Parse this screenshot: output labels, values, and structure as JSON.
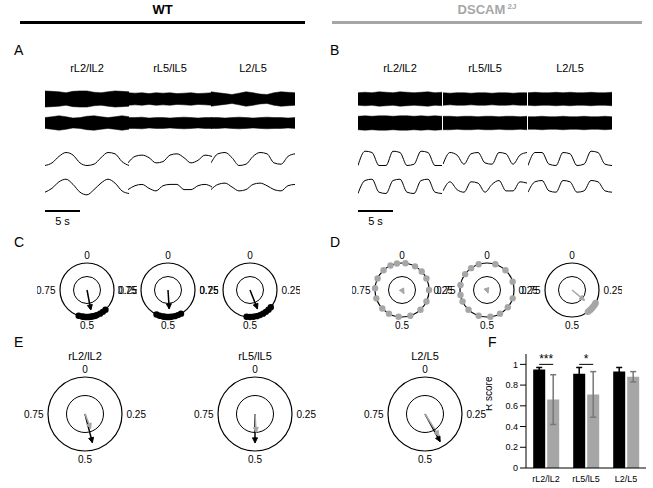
{
  "groups": [
    {
      "name": "WT",
      "color": "#000000"
    },
    {
      "name": "DSCAM",
      "superscript": "2J",
      "color": "#a6a6a6"
    }
  ],
  "chart_data": [
    {
      "panel": "A",
      "type": "line",
      "color": "#000000",
      "tick_labels": false,
      "x": [
        0,
        1,
        2,
        3,
        4,
        5,
        6,
        7,
        8,
        9,
        10,
        11,
        12
      ],
      "xlim": [
        0,
        12
      ],
      "ylim": [
        -1,
        1
      ],
      "scale_bar": {
        "value": 5,
        "label": "5 s"
      },
      "columns": [
        {
          "title": "rL2/lL2",
          "traces": [
            {
              "envelope": [
                0.9,
                0.85,
                0.8,
                0.7,
                0.85,
                0.9,
                0.9,
                0.75,
                0.7,
                0.8,
                0.9,
                0.85,
                0.8
              ]
            },
            {
              "envelope": [
                0.6,
                0.7,
                0.8,
                0.7,
                0.55,
                0.6,
                0.75,
                0.8,
                0.7,
                0.6,
                0.7,
                0.8,
                0.7
              ]
            },
            {
              "values": [
                -0.5,
                -0.3,
                0.2,
                0.5,
                0.3,
                -0.3,
                -0.5,
                -0.4,
                0.1,
                0.5,
                0.4,
                -0.2,
                -0.5
              ]
            },
            {
              "values": [
                -0.4,
                -0.1,
                0.4,
                0.6,
                0.2,
                -0.4,
                -0.6,
                -0.2,
                0.3,
                0.6,
                0.3,
                -0.3,
                -0.5
              ]
            }
          ]
        },
        {
          "title": "rL5/lL5",
          "traces": [
            {
              "envelope": [
                0.7,
                0.65,
                0.7,
                0.6,
                0.7,
                0.65,
                0.7,
                0.6,
                0.65,
                0.7,
                0.6,
                0.65,
                0.7
              ]
            },
            {
              "envelope": [
                0.6,
                0.6,
                0.65,
                0.55,
                0.6,
                0.6,
                0.55,
                0.6,
                0.65,
                0.6,
                0.55,
                0.6,
                0.6
              ]
            },
            {
              "values": [
                -0.3,
                0.2,
                0.3,
                0.1,
                -0.3,
                -0.2,
                0.3,
                0.4,
                0.1,
                -0.3,
                -0.1,
                0.3,
                0.2
              ]
            },
            {
              "values": [
                -0.2,
                0.1,
                0.2,
                -0.1,
                -0.3,
                0.1,
                0.2,
                0.2,
                -0.2,
                -0.2,
                0.1,
                0.2,
                0.0
              ]
            }
          ]
        },
        {
          "title": "L2/L5",
          "traces": [
            {
              "envelope": [
                0.8,
                0.7,
                0.6,
                0.5,
                0.65,
                0.8,
                0.7,
                0.55,
                0.5,
                0.7,
                0.8,
                0.75,
                0.7
              ]
            },
            {
              "envelope": [
                0.6,
                0.6,
                0.55,
                0.6,
                0.65,
                0.6,
                0.55,
                0.6,
                0.65,
                0.6,
                0.6,
                0.55,
                0.6
              ]
            },
            {
              "values": [
                -0.3,
                0.4,
                0.5,
                0.1,
                -0.5,
                -0.4,
                0.2,
                0.5,
                0.4,
                -0.3,
                -0.4,
                0.2,
                0.4
              ]
            },
            {
              "values": [
                -0.2,
                0.2,
                0.3,
                0.0,
                -0.3,
                -0.2,
                0.2,
                0.3,
                0.1,
                -0.2,
                -0.3,
                0.1,
                0.2
              ]
            }
          ]
        }
      ]
    },
    {
      "panel": "B",
      "type": "line",
      "color": "#000000",
      "tick_labels": false,
      "x": [
        0,
        1,
        2,
        3,
        4,
        5,
        6,
        7,
        8,
        9,
        10,
        11,
        12
      ],
      "xlim": [
        0,
        12
      ],
      "ylim": [
        -1,
        1
      ],
      "scale_bar": {
        "value": 5,
        "label": "5 s"
      },
      "columns": [
        {
          "title": "rL2/lL2",
          "traces": [
            {
              "envelope": [
                0.7,
                0.75,
                0.7,
                0.8,
                0.75,
                0.7,
                0.8,
                0.75,
                0.7,
                0.75,
                0.8,
                0.7,
                0.75
              ]
            },
            {
              "envelope": [
                0.75,
                0.8,
                0.75,
                0.8,
                0.8,
                0.75,
                0.8,
                0.8,
                0.75,
                0.8,
                0.75,
                0.8,
                0.75
              ]
            },
            {
              "values": [
                -0.5,
                0.6,
                0.5,
                -0.5,
                -0.5,
                0.6,
                0.5,
                -0.5,
                -0.4,
                0.6,
                0.5,
                -0.5,
                -0.5
              ]
            },
            {
              "values": [
                -0.5,
                0.5,
                0.6,
                -0.4,
                -0.5,
                0.5,
                0.6,
                -0.4,
                -0.5,
                0.5,
                0.6,
                -0.4,
                -0.5
              ]
            }
          ]
        },
        {
          "title": "rL5/lL5",
          "traces": [
            {
              "envelope": [
                0.7,
                0.65,
                0.7,
                0.7,
                0.65,
                0.7,
                0.7,
                0.65,
                0.7,
                0.7,
                0.65,
                0.7,
                0.7
              ]
            },
            {
              "envelope": [
                0.75,
                0.75,
                0.7,
                0.75,
                0.75,
                0.7,
                0.75,
                0.75,
                0.7,
                0.75,
                0.75,
                0.7,
                0.75
              ]
            },
            {
              "values": [
                -0.4,
                0.5,
                0.3,
                -0.4,
                0.4,
                0.5,
                -0.3,
                -0.4,
                0.5,
                0.4,
                -0.4,
                0.3,
                0.5
              ]
            },
            {
              "values": [
                -0.3,
                0.4,
                -0.2,
                -0.4,
                0.4,
                0.3,
                -0.4,
                0.2,
                0.5,
                -0.3,
                -0.3,
                0.4,
                0.3
              ]
            }
          ]
        },
        {
          "title": "L2/L5",
          "traces": [
            {
              "envelope": [
                0.7,
                0.75,
                0.7,
                0.7,
                0.75,
                0.7,
                0.75,
                0.7,
                0.7,
                0.75,
                0.7,
                0.7,
                0.75
              ]
            },
            {
              "envelope": [
                0.7,
                0.7,
                0.75,
                0.7,
                0.7,
                0.75,
                0.7,
                0.7,
                0.75,
                0.7,
                0.7,
                0.75,
                0.7
              ]
            },
            {
              "values": [
                -0.5,
                0.5,
                0.5,
                -0.4,
                -0.5,
                0.5,
                0.4,
                -0.5,
                -0.4,
                0.6,
                0.5,
                -0.4,
                -0.5
              ]
            },
            {
              "values": [
                -0.4,
                0.4,
                0.5,
                -0.3,
                -0.4,
                0.5,
                0.4,
                -0.4,
                -0.3,
                0.5,
                0.4,
                -0.3,
                -0.4
              ]
            }
          ]
        }
      ]
    },
    {
      "panel": "C",
      "type": "circular",
      "color": "#000000",
      "inner_ring": 0.5,
      "phase_ticks": [
        0,
        0.25,
        0.5,
        0.75
      ],
      "columns": [
        {
          "phases": [
            0.38,
            0.4,
            0.42,
            0.44,
            0.45,
            0.46,
            0.47,
            0.48,
            0.49,
            0.5,
            0.51,
            0.52,
            0.53,
            0.55
          ],
          "mean_phase": 0.47,
          "r": 0.75
        },
        {
          "phases": [
            0.42,
            0.44,
            0.46,
            0.48,
            0.49,
            0.5,
            0.51,
            0.52,
            0.53,
            0.55,
            0.57
          ],
          "mean_phase": 0.49,
          "r": 0.7
        },
        {
          "phases": [
            0.36,
            0.38,
            0.4,
            0.42,
            0.44,
            0.46,
            0.48,
            0.5,
            0.52
          ],
          "mean_phase": 0.44,
          "r": 0.75
        }
      ]
    },
    {
      "panel": "D",
      "type": "circular",
      "color": "#a6a6a6",
      "inner_ring": 0.5,
      "phase_ticks": [
        0,
        0.25,
        0.5,
        0.75
      ],
      "columns": [
        {
          "phases": [
            0.02,
            0.08,
            0.13,
            0.18,
            0.25,
            0.32,
            0.38,
            0.45,
            0.52,
            0.58,
            0.63,
            0.7,
            0.76,
            0.82,
            0.88,
            0.93,
            0.97
          ],
          "mean_phase": 0.42,
          "r": 0.15
        },
        {
          "phases": [
            0.05,
            0.12,
            0.2,
            0.3,
            0.36,
            0.42,
            0.48,
            0.55,
            0.62,
            0.68,
            0.72,
            0.78,
            0.85,
            0.9,
            0.95
          ],
          "mean_phase": 0.45,
          "r": 0.12
        },
        {
          "phases": [
            0.33,
            0.34,
            0.35,
            0.36,
            0.37,
            0.38,
            0.39,
            0.4
          ],
          "mean_phase": 0.36,
          "r": 0.6
        }
      ]
    },
    {
      "panel": "E",
      "type": "circular",
      "inner_ring": 0.5,
      "phase_ticks": [
        0,
        0.25,
        0.5,
        0.75
      ],
      "columns": [
        {
          "title": "rL2/lL2",
          "arrows": [
            {
              "color": "#000000",
              "mean_phase": 0.46,
              "r": 0.8
            },
            {
              "color": "#a6a6a6",
              "mean_phase": 0.44,
              "r": 0.42
            }
          ]
        },
        {
          "title": "rL5/lL5",
          "arrows": [
            {
              "color": "#000000",
              "mean_phase": 0.5,
              "r": 0.78
            },
            {
              "color": "#a6a6a6",
              "mean_phase": 0.49,
              "r": 0.5
            }
          ]
        },
        {
          "title": "L2/L5",
          "arrows": [
            {
              "color": "#000000",
              "mean_phase": 0.42,
              "r": 0.85
            },
            {
              "color": "#a6a6a6",
              "mean_phase": 0.41,
              "r": 0.7
            }
          ]
        }
      ]
    },
    {
      "panel": "F",
      "type": "bar",
      "categories": [
        "rL2/lL2",
        "rL5/lL5",
        "L2/L5"
      ],
      "series": [
        {
          "color": "#000000",
          "values": [
            0.95,
            0.91,
            0.93
          ],
          "errors": [
            0.02,
            0.06,
            0.04
          ]
        },
        {
          "color": "#a6a6a6",
          "values": [
            0.66,
            0.71,
            0.88
          ],
          "errors": [
            0.24,
            0.22,
            0.05
          ]
        }
      ],
      "ylabel": "R score",
      "ylim": [
        0,
        1.1
      ],
      "yticks": [
        0,
        0.2,
        0.4,
        0.6,
        0.8,
        1
      ],
      "significance": [
        "***",
        "*",
        null
      ]
    }
  ]
}
